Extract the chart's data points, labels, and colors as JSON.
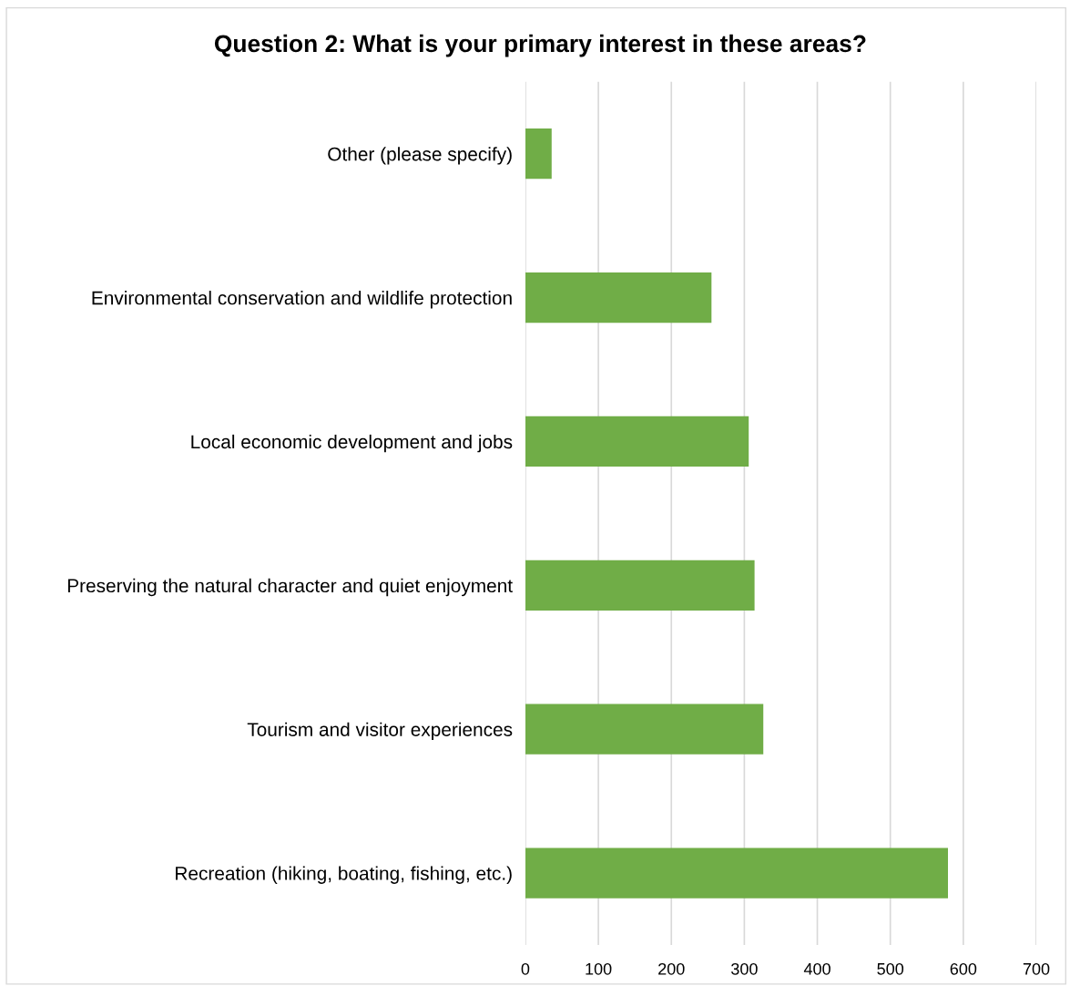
{
  "chart_data": {
    "type": "bar",
    "orientation": "horizontal",
    "title": "Question 2: What is your primary interest in these areas?",
    "categories": [
      "Other (please specify)",
      "Environmental conservation and wildlife protection",
      "Local economic development and jobs",
      "Preserving the natural character and quiet enjoyment",
      "Tourism and visitor experiences",
      "Recreation (hiking, boating, fishing, etc.)"
    ],
    "values": [
      36,
      255,
      306,
      314,
      326,
      579
    ],
    "color": "#70ad47",
    "xlim": [
      0,
      700
    ],
    "xticks": [
      0,
      100,
      200,
      300,
      400,
      500,
      600,
      700
    ],
    "grid": "x",
    "legend": false
  }
}
